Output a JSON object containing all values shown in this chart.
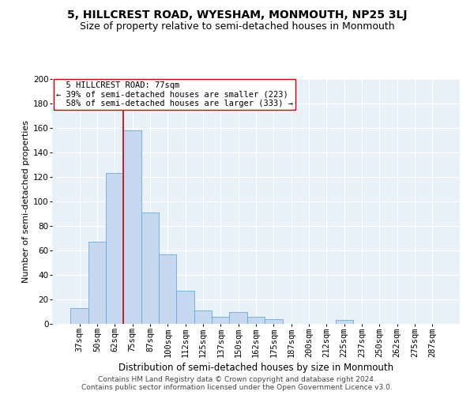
{
  "title": "5, HILLCREST ROAD, WYESHAM, MONMOUTH, NP25 3LJ",
  "subtitle": "Size of property relative to semi-detached houses in Monmouth",
  "xlabel": "Distribution of semi-detached houses by size in Monmouth",
  "ylabel": "Number of semi-detached properties",
  "categories": [
    "37sqm",
    "50sqm",
    "62sqm",
    "75sqm",
    "87sqm",
    "100sqm",
    "112sqm",
    "125sqm",
    "137sqm",
    "150sqm",
    "162sqm",
    "175sqm",
    "187sqm",
    "200sqm",
    "212sqm",
    "225sqm",
    "237sqm",
    "250sqm",
    "262sqm",
    "275sqm",
    "287sqm"
  ],
  "values": [
    13,
    67,
    123,
    158,
    91,
    57,
    27,
    11,
    6,
    10,
    6,
    4,
    0,
    0,
    0,
    3,
    0,
    0,
    0,
    0,
    0
  ],
  "bar_color": "#c5d8f0",
  "bar_edgecolor": "#6aaad4",
  "bar_width": 1.0,
  "vline_x": 2.5,
  "vline_color": "#cc0000",
  "annotation_text": "  5 HILLCREST ROAD: 77sqm\n← 39% of semi-detached houses are smaller (223)\n  58% of semi-detached houses are larger (333) →",
  "annotation_box_edgecolor": "#cc0000",
  "ylim": [
    0,
    200
  ],
  "yticks": [
    0,
    20,
    40,
    60,
    80,
    100,
    120,
    140,
    160,
    180,
    200
  ],
  "background_color": "#e8f0f8",
  "grid_color": "#ffffff",
  "footer_line1": "Contains HM Land Registry data © Crown copyright and database right 2024.",
  "footer_line2": "Contains public sector information licensed under the Open Government Licence v3.0.",
  "title_fontsize": 10,
  "subtitle_fontsize": 9,
  "xlabel_fontsize": 8.5,
  "ylabel_fontsize": 8,
  "tick_fontsize": 7.5,
  "annotation_fontsize": 7.5,
  "footer_fontsize": 6.5
}
